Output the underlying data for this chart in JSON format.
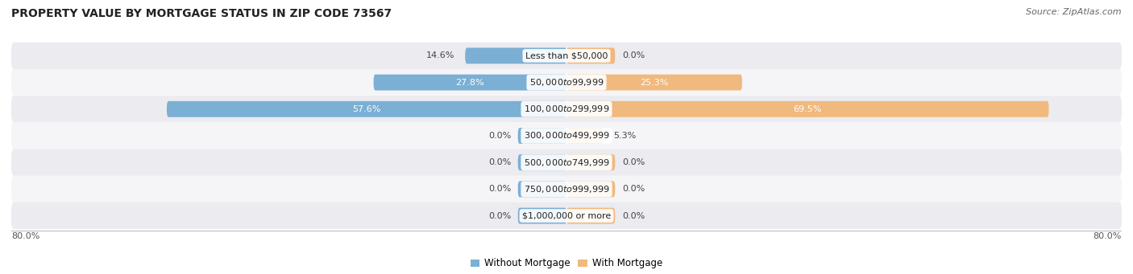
{
  "title": "PROPERTY VALUE BY MORTGAGE STATUS IN ZIP CODE 73567",
  "source": "Source: ZipAtlas.com",
  "categories": [
    "Less than $50,000",
    "$50,000 to $99,999",
    "$100,000 to $299,999",
    "$300,000 to $499,999",
    "$500,000 to $749,999",
    "$750,000 to $999,999",
    "$1,000,000 or more"
  ],
  "without_mortgage": [
    14.6,
    27.8,
    57.6,
    0.0,
    0.0,
    0.0,
    0.0
  ],
  "with_mortgage": [
    0.0,
    25.3,
    69.5,
    5.3,
    0.0,
    0.0,
    0.0
  ],
  "without_mortgage_color": "#7BAFD4",
  "with_mortgage_color": "#F0B97D",
  "row_bg_even": "#EBEBF0",
  "row_bg_odd": "#F5F5F8",
  "x_max": 80.0,
  "x_min": -80.0,
  "stub_bar_size": 7.0,
  "title_fontsize": 10,
  "source_fontsize": 8,
  "label_fontsize": 8,
  "category_fontsize": 8,
  "legend_fontsize": 8.5
}
